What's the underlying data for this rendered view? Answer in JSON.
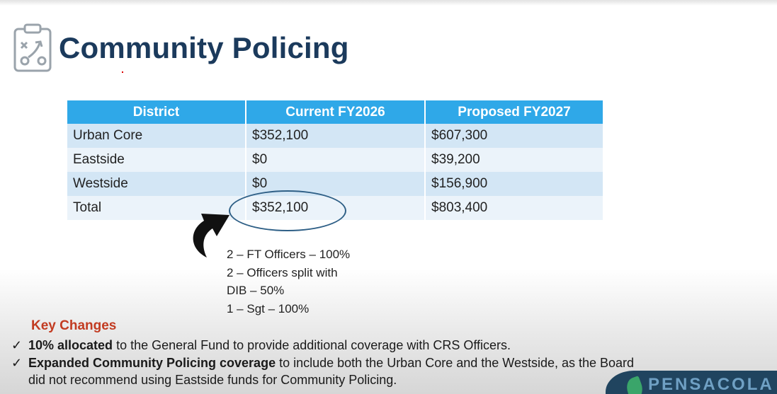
{
  "slide": {
    "title": "Community Policing"
  },
  "table": {
    "headers": [
      "District",
      "Current FY2026",
      "Proposed FY2027"
    ],
    "rows": [
      [
        "Urban Core",
        "$352,100",
        "$607,300"
      ],
      [
        "Eastside",
        "$0",
        "$39,200"
      ],
      [
        "Westside",
        "$0",
        "$156,900"
      ],
      [
        "Total",
        "$352,100",
        "$803,400"
      ]
    ]
  },
  "notes": [
    "2 – FT Officers – 100%",
    "2 – Officers split with",
    "DIB – 50%",
    "1 – Sgt – 100%"
  ],
  "key_changes": {
    "title": "Key Changes",
    "item1_bold": "10% allocated",
    "item1_rest": " to the General Fund to provide additional coverage with CRS Officers.",
    "item2_bold": "Expanded Community Policing coverage",
    "item2_rest": " to include both the Urban Core and the Westside, as the Board",
    "item2_line2": "did not recommend using Eastside funds for Community Policing."
  },
  "brand": {
    "text": "PENSACOLA"
  },
  "icons": {
    "logo": "strategy-clipboard-icon",
    "arrow": "curved-arrow-icon",
    "check": "checkmark-icon"
  },
  "colors": {
    "title": "#1b3a5c",
    "table_header": "#2fa8e8",
    "key_changes": "#c23b21",
    "ellipse": "#2e5f86"
  }
}
